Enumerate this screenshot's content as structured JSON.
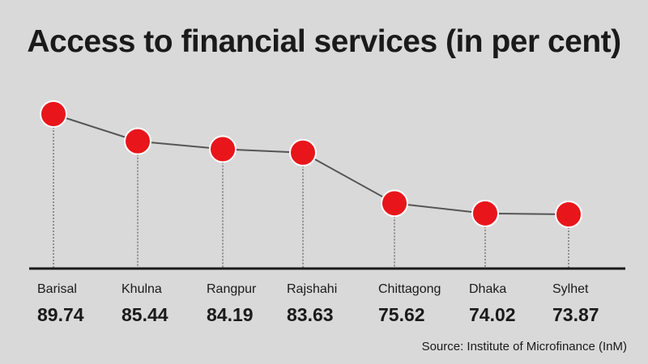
{
  "chart_data": {
    "type": "line",
    "title": "Access to financial services (in per cent)",
    "categories": [
      "Barisal",
      "Khulna",
      "Rangpur",
      "Rajshahi",
      "Chittagong",
      "Dhaka",
      "Sylhet"
    ],
    "values": [
      89.74,
      85.44,
      84.19,
      83.63,
      75.62,
      74.02,
      73.87
    ],
    "value_labels": [
      "89.74",
      "85.44",
      "84.19",
      "83.63",
      "75.62",
      "74.02",
      "73.87"
    ],
    "source": "Source: Institute of Microfinance (InM)",
    "xlabel": "",
    "ylabel": "",
    "grid": false,
    "colors": {
      "background": "#d9d9d9",
      "line": "#555555",
      "marker": "#e8161b",
      "marker_stroke": "#ffffff",
      "dropline": "#666666",
      "baseline": "#1a1a1a",
      "text": "#1a1a1a"
    }
  }
}
